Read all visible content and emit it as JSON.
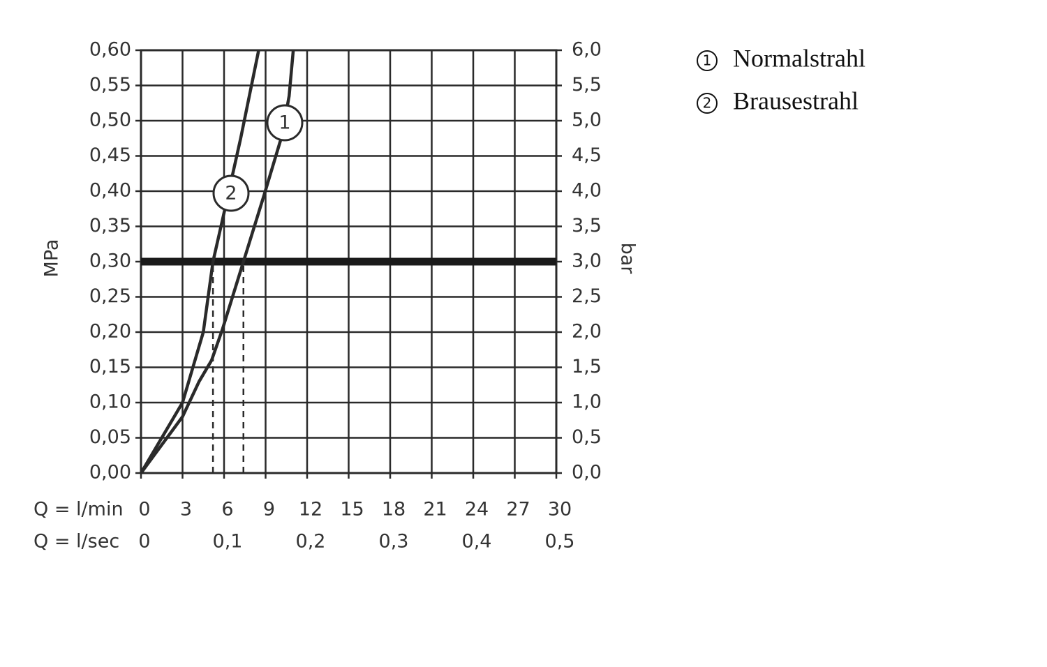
{
  "chart_data": {
    "type": "line",
    "xlabel": "Q = l/min",
    "x2label": "Q = l/sec",
    "ylabel": "MPa",
    "y2label": "bar",
    "xlim": [
      0,
      30
    ],
    "xticks": [
      0,
      3,
      6,
      9,
      12,
      15,
      18,
      21,
      24,
      27,
      30
    ],
    "x2lim": [
      0,
      0.5
    ],
    "x2ticks": [
      0,
      {
        "value": 0.1,
        "label": "0,1"
      },
      {
        "value": 0.2,
        "label": "0,2"
      },
      {
        "value": 0.3,
        "label": "0,3"
      },
      {
        "value": 0.4,
        "label": "0,4"
      },
      {
        "value": 0.5,
        "label": "0,5"
      }
    ],
    "ylim": [
      0,
      0.6
    ],
    "yticks": [
      {
        "value": 0,
        "label": "0,00"
      },
      {
        "value": 0.05,
        "label": "0,05"
      },
      {
        "value": 0.1,
        "label": "0,10"
      },
      {
        "value": 0.15,
        "label": "0,15"
      },
      {
        "value": 0.2,
        "label": "0,20"
      },
      {
        "value": 0.25,
        "label": "0,25"
      },
      {
        "value": 0.3,
        "label": "0,30"
      },
      {
        "value": 0.35,
        "label": "0,35"
      },
      {
        "value": 0.4,
        "label": "0,40"
      },
      {
        "value": 0.45,
        "label": "0,45"
      },
      {
        "value": 0.5,
        "label": "0,50"
      },
      {
        "value": 0.55,
        "label": "0,55"
      },
      {
        "value": 0.6,
        "label": "0,60"
      }
    ],
    "y2lim": [
      0,
      6
    ],
    "y2ticks": [
      {
        "value": 0,
        "label": "0,0"
      },
      {
        "value": 0.5,
        "label": "0,5"
      },
      {
        "value": 1,
        "label": "1,0"
      },
      {
        "value": 1.5,
        "label": "1,5"
      },
      {
        "value": 2,
        "label": "2,0"
      },
      {
        "value": 2.5,
        "label": "2,5"
      },
      {
        "value": 3,
        "label": "3,0"
      },
      {
        "value": 3.5,
        "label": "3,5"
      },
      {
        "value": 4,
        "label": "4,0"
      },
      {
        "value": 4.5,
        "label": "4,5"
      },
      {
        "value": 5,
        "label": "5,0"
      },
      {
        "value": 5.5,
        "label": "5,5"
      },
      {
        "value": 6,
        "label": "6,0"
      }
    ],
    "grid": true,
    "reference_line": 0.3,
    "series": [
      {
        "name": "Normalstrahl",
        "label": "1",
        "color": "#2a2a2a",
        "x": [
          0,
          3,
          4.2,
          5.1,
          5.9,
          7.4,
          8.9,
          10.2,
          10.7,
          11.0
        ],
        "values": [
          0,
          0.08,
          0.13,
          0.16,
          0.205,
          0.3,
          0.395,
          0.48,
          0.535,
          0.6
        ]
      },
      {
        "name": "Brausestrahl",
        "label": "2",
        "color": "#2a2a2a",
        "x": [
          0,
          3,
          4.5,
          5.2,
          5.95,
          7.2,
          8.5
        ],
        "values": [
          0,
          0.1,
          0.2,
          0.3,
          0.365,
          0.475,
          0.6
        ]
      }
    ]
  }
}
